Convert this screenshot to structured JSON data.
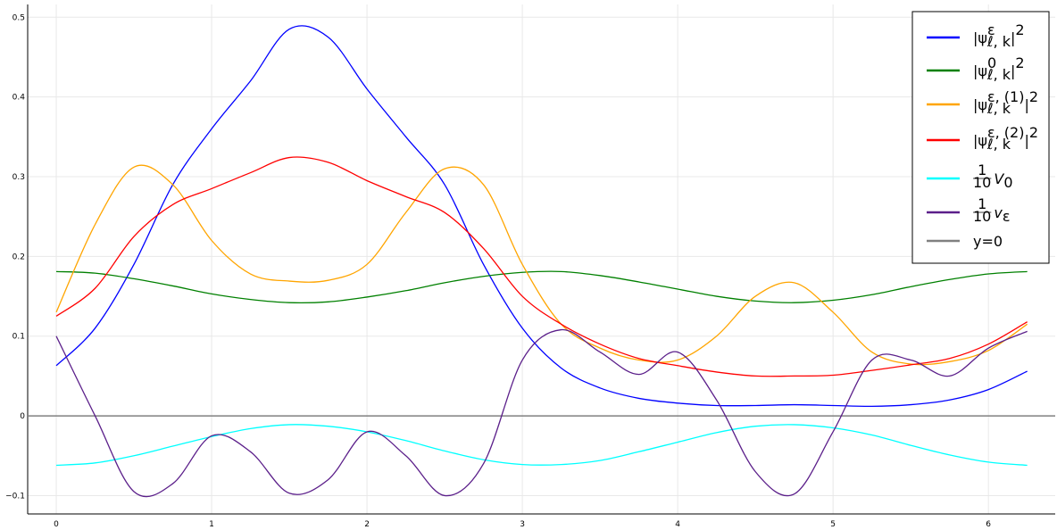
{
  "chart_data": {
    "type": "line",
    "x": [
      0,
      0.25,
      0.5,
      0.75,
      1.0,
      1.25,
      1.5,
      1.75,
      2.0,
      2.25,
      2.5,
      2.75,
      3.0,
      3.25,
      3.5,
      3.75,
      4.0,
      4.25,
      4.5,
      4.75,
      5.0,
      5.25,
      5.5,
      5.75,
      6.0,
      6.25
    ],
    "series": [
      {
        "name": [
          {
            "text": "|ψ"
          },
          {
            "text": "ε",
            "pos": "sup"
          },
          {
            "text": "ℓ, k",
            "pos": "sub"
          },
          {
            "text": "|"
          },
          {
            "text": "2",
            "pos": "sup"
          }
        ],
        "color": "#0000ff",
        "values": [
          0.063,
          0.11,
          0.19,
          0.29,
          0.36,
          0.42,
          0.485,
          0.475,
          0.41,
          0.35,
          0.29,
          0.19,
          0.11,
          0.06,
          0.035,
          0.022,
          0.016,
          0.013,
          0.013,
          0.014,
          0.013,
          0.012,
          0.014,
          0.02,
          0.033,
          0.056
        ]
      },
      {
        "name": [
          {
            "text": "|ψ"
          },
          {
            "text": "0",
            "pos": "sup"
          },
          {
            "text": "ℓ, k",
            "pos": "sub"
          },
          {
            "text": "|"
          },
          {
            "text": "2",
            "pos": "sup"
          }
        ],
        "color": "#008000",
        "values": [
          0.181,
          0.179,
          0.172,
          0.163,
          0.153,
          0.146,
          0.142,
          0.143,
          0.149,
          0.157,
          0.167,
          0.175,
          0.18,
          0.181,
          0.176,
          0.168,
          0.159,
          0.15,
          0.144,
          0.142,
          0.145,
          0.152,
          0.162,
          0.171,
          0.178,
          0.181
        ]
      },
      {
        "name": [
          {
            "text": "|ψ"
          },
          {
            "text": "ε, (1)",
            "pos": "sup"
          },
          {
            "text": "ℓ, k",
            "pos": "sub"
          },
          {
            "text": "|"
          },
          {
            "text": "2",
            "pos": "sup"
          }
        ],
        "color": "#ffa500",
        "values": [
          0.13,
          0.24,
          0.312,
          0.29,
          0.22,
          0.178,
          0.169,
          0.17,
          0.19,
          0.255,
          0.31,
          0.29,
          0.19,
          0.115,
          0.085,
          0.07,
          0.07,
          0.1,
          0.15,
          0.167,
          0.13,
          0.08,
          0.065,
          0.068,
          0.082,
          0.115
        ]
      },
      {
        "name": [
          {
            "text": "|ψ"
          },
          {
            "text": "ε, (2)",
            "pos": "sup"
          },
          {
            "text": "ℓ, k",
            "pos": "sub"
          },
          {
            "text": "|"
          },
          {
            "text": "2",
            "pos": "sup"
          }
        ],
        "color": "#ff0000",
        "values": [
          0.125,
          0.16,
          0.225,
          0.265,
          0.285,
          0.305,
          0.324,
          0.318,
          0.295,
          0.275,
          0.255,
          0.21,
          0.15,
          0.115,
          0.09,
          0.072,
          0.063,
          0.055,
          0.05,
          0.05,
          0.051,
          0.057,
          0.064,
          0.072,
          0.09,
          0.118
        ]
      },
      {
        "name": [
          {
            "text": "1",
            "pos": "num"
          },
          {
            "text": "10",
            "pos": "den"
          },
          {
            "text": "V"
          },
          {
            "text": "0",
            "pos": "sub"
          }
        ],
        "color": "#00ffff",
        "values": [
          -0.062,
          -0.059,
          -0.05,
          -0.038,
          -0.026,
          -0.016,
          -0.011,
          -0.013,
          -0.02,
          -0.031,
          -0.044,
          -0.055,
          -0.061,
          -0.061,
          -0.056,
          -0.045,
          -0.033,
          -0.021,
          -0.013,
          -0.011,
          -0.015,
          -0.024,
          -0.037,
          -0.049,
          -0.058,
          -0.062
        ]
      },
      {
        "name": [
          {
            "text": "1",
            "pos": "num"
          },
          {
            "text": "10",
            "pos": "den"
          },
          {
            "text": "v"
          },
          {
            "text": "ε",
            "pos": "sub"
          }
        ],
        "color": "#5b1f8a",
        "values": [
          0.1,
          0.0,
          -0.095,
          -0.085,
          -0.025,
          -0.045,
          -0.097,
          -0.08,
          -0.02,
          -0.05,
          -0.1,
          -0.06,
          0.07,
          0.108,
          0.08,
          0.052,
          0.08,
          0.02,
          -0.07,
          -0.098,
          -0.02,
          0.07,
          0.07,
          0.05,
          0.085,
          0.106
        ]
      }
    ],
    "hlines": [
      {
        "name": [
          {
            "text": "y=0"
          }
        ],
        "color": "#808080",
        "value": 0
      }
    ],
    "xlim": [
      -0.184,
      6.43
    ],
    "ylim": [
      -0.123,
      0.516
    ],
    "xticks": [
      0,
      1,
      2,
      3,
      4,
      5,
      6
    ],
    "yticks": [
      -0.1,
      0.0,
      0.1,
      0.2,
      0.3,
      0.4,
      0.5
    ],
    "grid": true,
    "legend": "top-right"
  }
}
